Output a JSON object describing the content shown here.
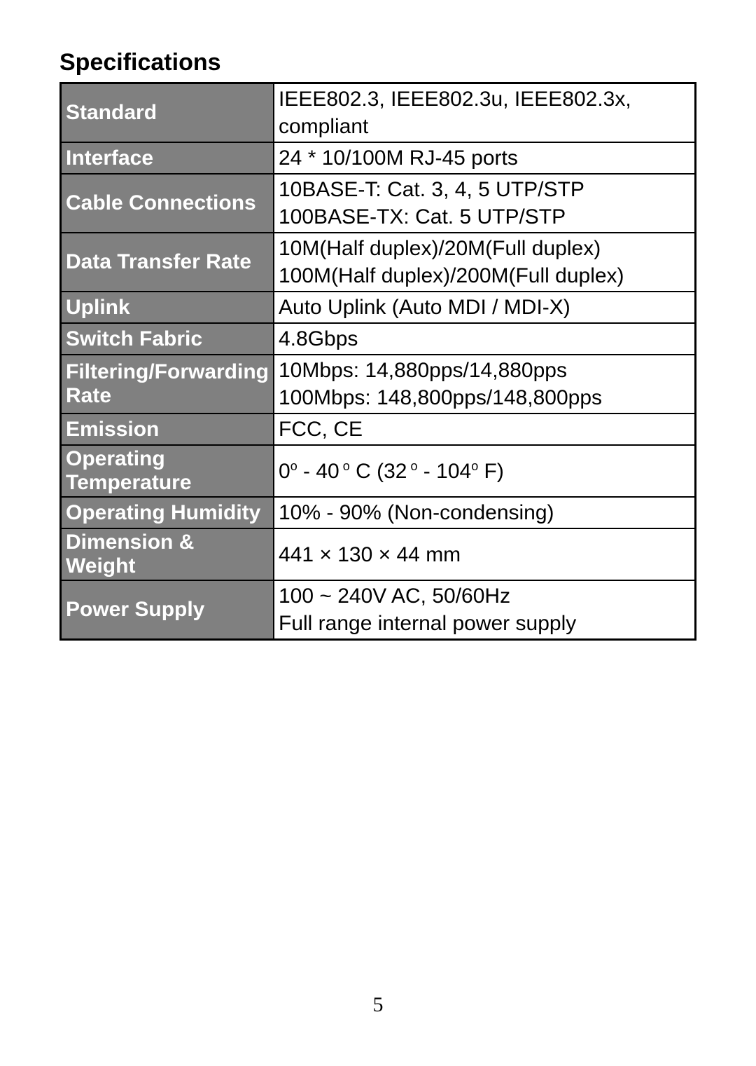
{
  "title": "Specifications",
  "page_number": "5",
  "table": {
    "label_bg_color": "#808080",
    "label_text_color": "#ffffff",
    "value_bg_color": "#ffffff",
    "value_text_color": "#000000",
    "border_color": "#000000",
    "font_size": 30,
    "rows": [
      {
        "label": "Standard",
        "value": "IEEE802.3, IEEE802.3u, IEEE802.3x, compliant"
      },
      {
        "label": "Interface",
        "value": "24 * 10/100M RJ-45 ports"
      },
      {
        "label": "Cable Connections",
        "value": "10BASE-T: Cat. 3, 4, 5 UTP/STP\n100BASE-TX: Cat. 5 UTP/STP"
      },
      {
        "label": "Data Transfer Rate",
        "value": "10M(Half duplex)/20M(Full duplex)\n100M(Half duplex)/200M(Full duplex)"
      },
      {
        "label": "Uplink",
        "value": "Auto Uplink (Auto MDI / MDI-X)"
      },
      {
        "label": "Switch Fabric",
        "value": "4.8Gbps"
      },
      {
        "label": "Filtering/Forwarding Rate",
        "value": "10Mbps: 14,880pps/14,880pps\n100Mbps: 148,800pps/148,800pps"
      },
      {
        "label": "Emission",
        "value": "FCC, CE"
      },
      {
        "label": "Operating Temperature",
        "value_html": "0<sup>o</sup> - 40<sup> o</sup> C (32<sup> o</sup> - 104<sup>o</sup>  F)"
      },
      {
        "label": "Operating Humidity",
        "value": "10% - 90% (Non-condensing)"
      },
      {
        "label": "Dimension & Weight",
        "value": "441 × 130 × 44 mm"
      },
      {
        "label": "Power Supply",
        "value": "100 ~ 240V AC, 50/60Hz\nFull range internal power supply"
      }
    ]
  }
}
